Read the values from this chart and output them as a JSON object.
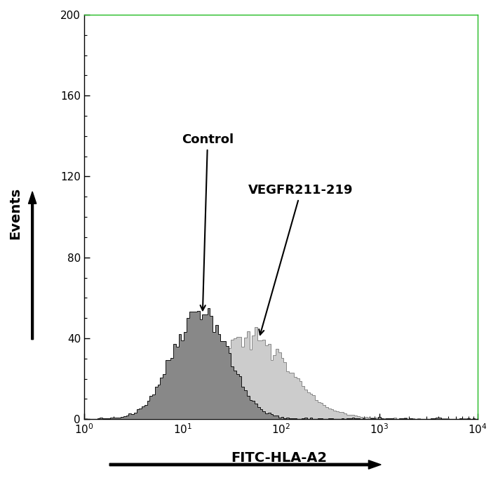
{
  "xlabel": "FITC-HLA-A2",
  "ylabel": "Events",
  "xlim_log": [
    1.0,
    10000.0
  ],
  "ylim": [
    0,
    200
  ],
  "yticks": [
    0,
    40,
    80,
    120,
    160,
    200
  ],
  "control_label": "Control",
  "vegfr_label": "VEGFR211-219",
  "control_fill_color": "#888888",
  "control_edge_color": "#111111",
  "vegfr_fill_color": "#cccccc",
  "vegfr_edge_color": "#888888",
  "background_color": "#ffffff",
  "right_spine_color": "#22bb22",
  "top_spine_color": "#22bb22",
  "control_log_mean": 1.18,
  "control_log_std": 0.28,
  "control_peak": 55,
  "vegfr_log_mean": 1.65,
  "vegfr_log_std": 0.42,
  "vegfr_peak": 45,
  "n_bins": 150
}
